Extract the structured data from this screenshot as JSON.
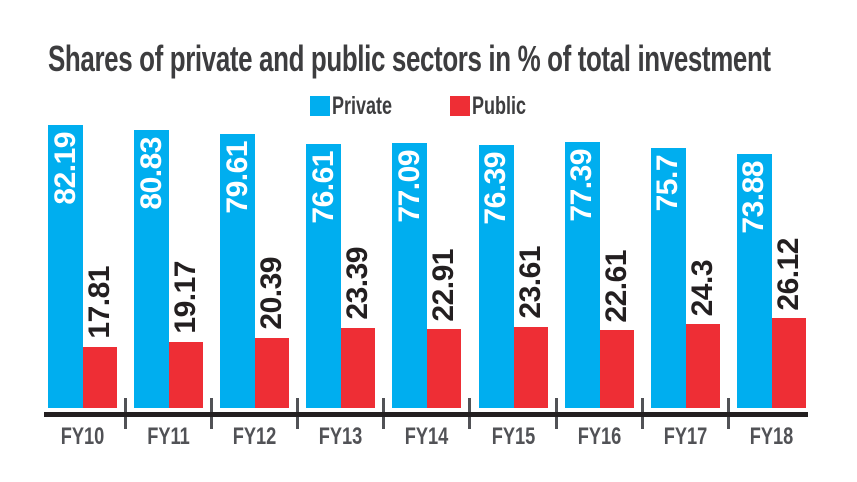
{
  "title": "Shares of private and public sectors in % of total investment",
  "legend": {
    "position": "top",
    "entries": [
      {
        "label": "Private",
        "color": "#00AEEF"
      },
      {
        "label": "Public",
        "color": "#EE2E35"
      }
    ]
  },
  "chart_data": {
    "type": "bar",
    "title": "Shares of private and public sectors in % of total investment",
    "categories": [
      "FY10",
      "FY11",
      "FY12",
      "FY13",
      "FY14",
      "FY15",
      "FY16",
      "FY17",
      "FY18"
    ],
    "series": [
      {
        "name": "Private",
        "color": "#00AEEF",
        "label_color": "#FFFFFF",
        "label_placement": "inside-top",
        "values": [
          82.19,
          80.83,
          79.61,
          76.61,
          77.09,
          76.39,
          77.39,
          75.7,
          73.88
        ]
      },
      {
        "name": "Public",
        "color": "#EE2E35",
        "label_color": "#231F20",
        "label_placement": "above",
        "values": [
          17.81,
          19.17,
          20.39,
          23.39,
          22.91,
          23.61,
          22.61,
          24.3,
          26.12
        ]
      }
    ],
    "ylim": [
      0,
      100
    ],
    "unit": "%",
    "gridlines": false,
    "value_labels_rotation": -90,
    "legend_position": "top",
    "xlabel": "",
    "ylabel": ""
  },
  "colors": {
    "background": "#FFFFFF",
    "title_text": "#3D3D3F",
    "category_text": "#515256",
    "axis_line": "#231F20",
    "tick_line": "#515256"
  }
}
